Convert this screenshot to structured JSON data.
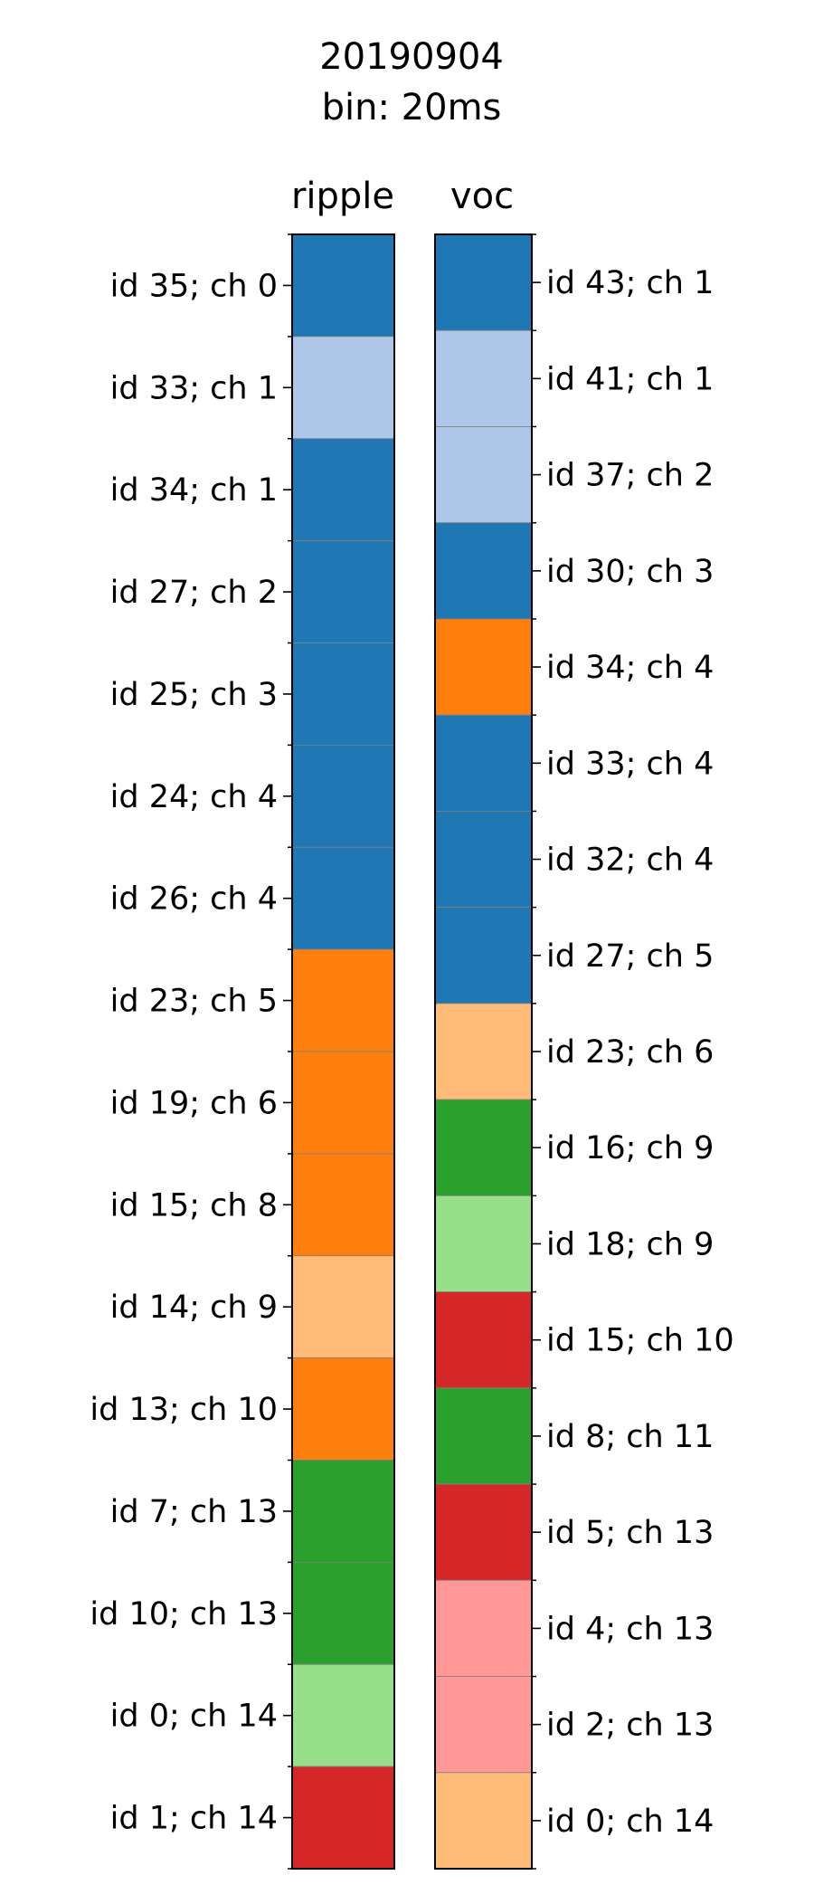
{
  "chart_data": {
    "type": "heatmap",
    "title": "20190904\nbin: 20ms",
    "title_lines": [
      "20190904",
      "bin: 20ms"
    ],
    "panels": [
      {
        "name": "ripple",
        "label_side": "left",
        "rows": [
          {
            "label": "id 35; ch 0",
            "color": "#1f77b4"
          },
          {
            "label": "id 33; ch 1",
            "color": "#aec7e8"
          },
          {
            "label": "id 34; ch 1",
            "color": "#1f77b4"
          },
          {
            "label": "id 27; ch 2",
            "color": "#1f77b4"
          },
          {
            "label": "id 25; ch 3",
            "color": "#1f77b4"
          },
          {
            "label": "id 24; ch 4",
            "color": "#1f77b4"
          },
          {
            "label": "id 26; ch 4",
            "color": "#1f77b4"
          },
          {
            "label": "id 23; ch 5",
            "color": "#ff7f0e"
          },
          {
            "label": "id 19; ch 6",
            "color": "#ff7f0e"
          },
          {
            "label": "id 15; ch 8",
            "color": "#ff7f0e"
          },
          {
            "label": "id 14; ch 9",
            "color": "#ffbb78"
          },
          {
            "label": "id 13; ch 10",
            "color": "#ff7f0e"
          },
          {
            "label": "id 7; ch 13",
            "color": "#2ca02c"
          },
          {
            "label": "id 10; ch 13",
            "color": "#2ca02c"
          },
          {
            "label": "id 0; ch 14",
            "color": "#98df8a"
          },
          {
            "label": "id 1; ch 14",
            "color": "#d62728"
          }
        ]
      },
      {
        "name": "voc",
        "label_side": "right",
        "rows": [
          {
            "label": "id 43; ch 1",
            "color": "#1f77b4"
          },
          {
            "label": "id 41; ch 1",
            "color": "#aec7e8"
          },
          {
            "label": "id 37; ch 2",
            "color": "#aec7e8"
          },
          {
            "label": "id 30; ch 3",
            "color": "#1f77b4"
          },
          {
            "label": "id 34; ch 4",
            "color": "#ff7f0e"
          },
          {
            "label": "id 33; ch 4",
            "color": "#1f77b4"
          },
          {
            "label": "id 32; ch 4",
            "color": "#1f77b4"
          },
          {
            "label": "id 27; ch 5",
            "color": "#1f77b4"
          },
          {
            "label": "id 23; ch 6",
            "color": "#ffbb78"
          },
          {
            "label": "id 16; ch 9",
            "color": "#2ca02c"
          },
          {
            "label": "id 18; ch 9",
            "color": "#98df8a"
          },
          {
            "label": "id 15; ch 10",
            "color": "#d62728"
          },
          {
            "label": "id 8; ch 11",
            "color": "#2ca02c"
          },
          {
            "label": "id 5; ch 13",
            "color": "#d62728"
          },
          {
            "label": "id 4; ch 13",
            "color": "#ff9896"
          },
          {
            "label": "id 2; ch 13",
            "color": "#ff9896"
          },
          {
            "label": "id 0; ch 14",
            "color": "#ffbb78"
          }
        ]
      }
    ],
    "grid": false,
    "legend": "none"
  }
}
